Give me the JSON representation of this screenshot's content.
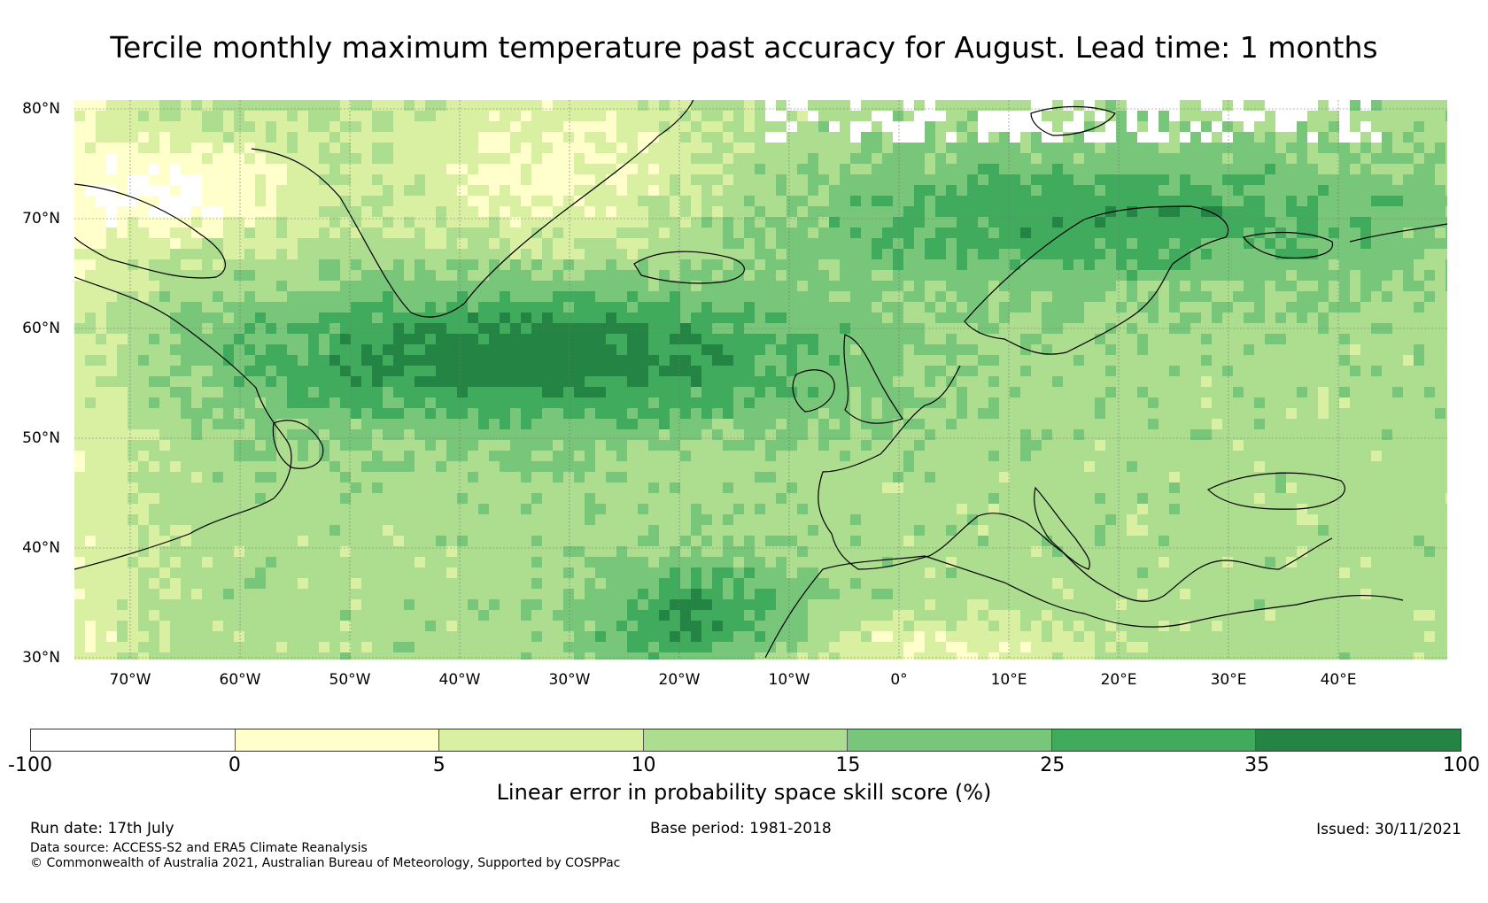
{
  "title": "Tercile monthly maximum temperature past accuracy for August. Lead time: 1 months",
  "map": {
    "lat_labels": [
      "80°N",
      "70°N",
      "60°N",
      "50°N",
      "40°N",
      "30°N"
    ],
    "lon_labels": [
      "70°W",
      "60°W",
      "50°W",
      "40°W",
      "30°W",
      "20°W",
      "10°W",
      "0°",
      "10°E",
      "20°E",
      "30°E",
      "40°E"
    ],
    "land_outline_color": "#000000",
    "gridline_color": "#777777"
  },
  "colorbar": {
    "ticks": [
      "-100",
      "0",
      "5",
      "10",
      "15",
      "25",
      "35",
      "100"
    ],
    "colors": [
      "#ffffff",
      "#ffffcc",
      "#d9f0a3",
      "#addd8e",
      "#78c679",
      "#41ab5d",
      "#238443"
    ],
    "label": "Linear error in probability space skill score (%)"
  },
  "footer": {
    "run_date": "Run date: 17th July",
    "base_period": "Base period: 1981-2018",
    "issued": "Issued: 30/11/2021",
    "data_source": "Data source: ACCESS-S2 and ERA5 Climate Reanalysis",
    "copyright": "© Commonwealth of Australia 2021, Australian Bureau of Meteorology, Supported by COSPPac"
  }
}
